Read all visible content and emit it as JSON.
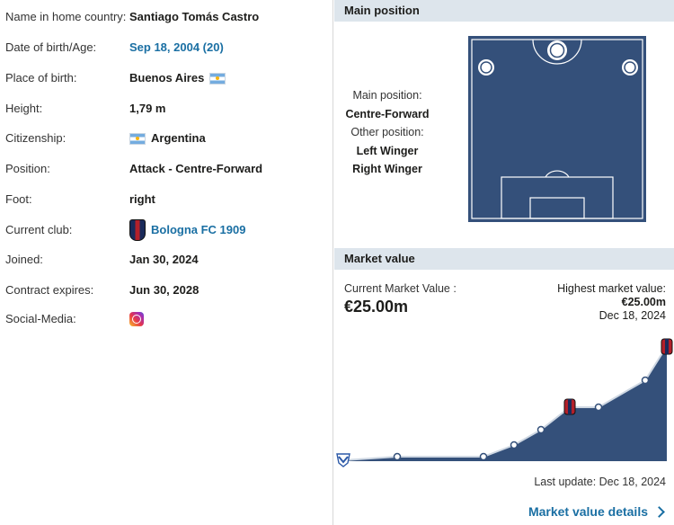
{
  "info": {
    "rows": [
      {
        "label": "Name in home country:",
        "value": "Santiago Tomás Castro"
      },
      {
        "label": "Date of birth/Age:",
        "value": "Sep 18, 2004 (20)"
      },
      {
        "label": "Place of birth:",
        "value": "Buenos Aires"
      },
      {
        "label": "Height:",
        "value": "1,79 m"
      },
      {
        "label": "Citizenship:",
        "value": "Argentina"
      },
      {
        "label": "Position:",
        "value": "Attack - Centre-Forward"
      },
      {
        "label": "Foot:",
        "value": "right"
      },
      {
        "label": "Current club:",
        "value": "Bologna FC 1909"
      },
      {
        "label": "Joined:",
        "value": "Jan 30, 2024"
      },
      {
        "label": "Contract expires:",
        "value": "Jun 30, 2028"
      },
      {
        "label": "Social-Media:",
        "value": ""
      }
    ]
  },
  "position": {
    "header": "Main position",
    "main_label": "Main position:",
    "main_value": "Centre-Forward",
    "other_label": "Other position:",
    "other_values": [
      "Left Winger",
      "Right Winger"
    ]
  },
  "market": {
    "header": "Market value",
    "current_label": "Current Market Value :",
    "current_value": "€25.00m",
    "highest_label": "Highest market value:",
    "highest_value": "€25.00m",
    "highest_date": "Dec 18, 2024",
    "last_update": "Last update: Dec 18, 2024",
    "details_link": "Market value details"
  },
  "colors": {
    "pitch": "#34507a",
    "link": "#1a6fa3",
    "header_bg": "#dde5ec"
  }
}
